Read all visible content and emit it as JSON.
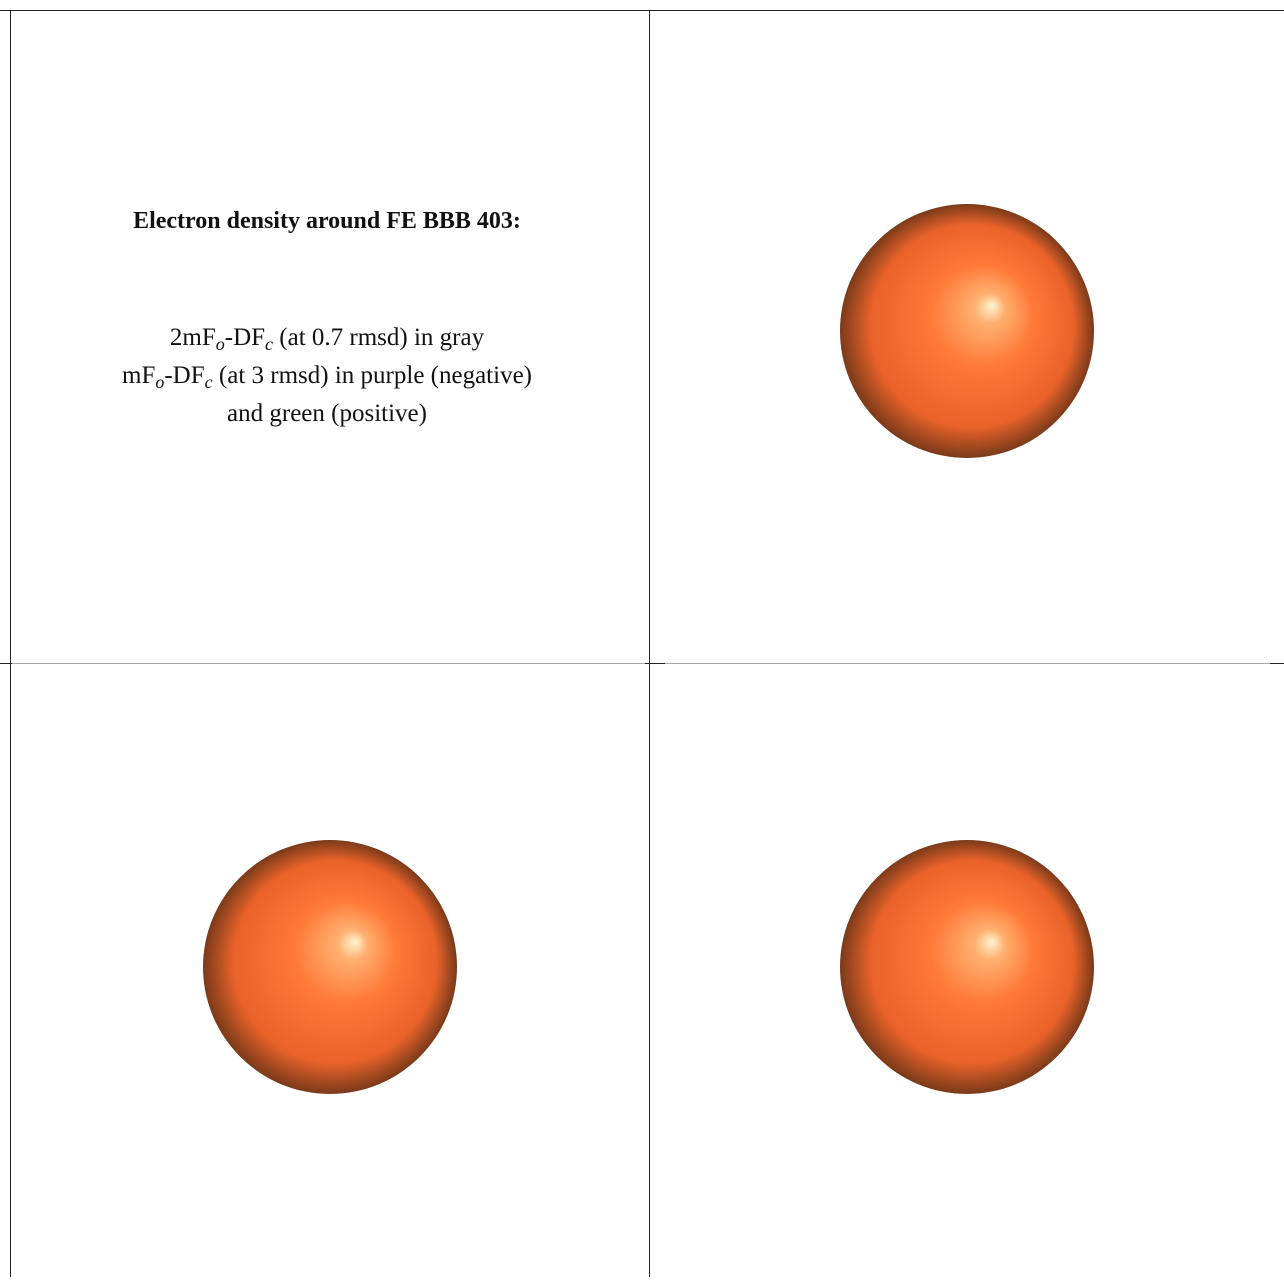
{
  "panel": {
    "title": "Electron density around FE BBB 403:",
    "lines": [
      [
        "2mF",
        "o",
        "-DF",
        "c",
        " (at 0.7 rmsd) in gray"
      ],
      [
        "mF",
        "o",
        "-DF",
        "c",
        " (at 3 rmsd) in purple (negative)"
      ],
      [
        "and green (positive)"
      ]
    ]
  }
}
